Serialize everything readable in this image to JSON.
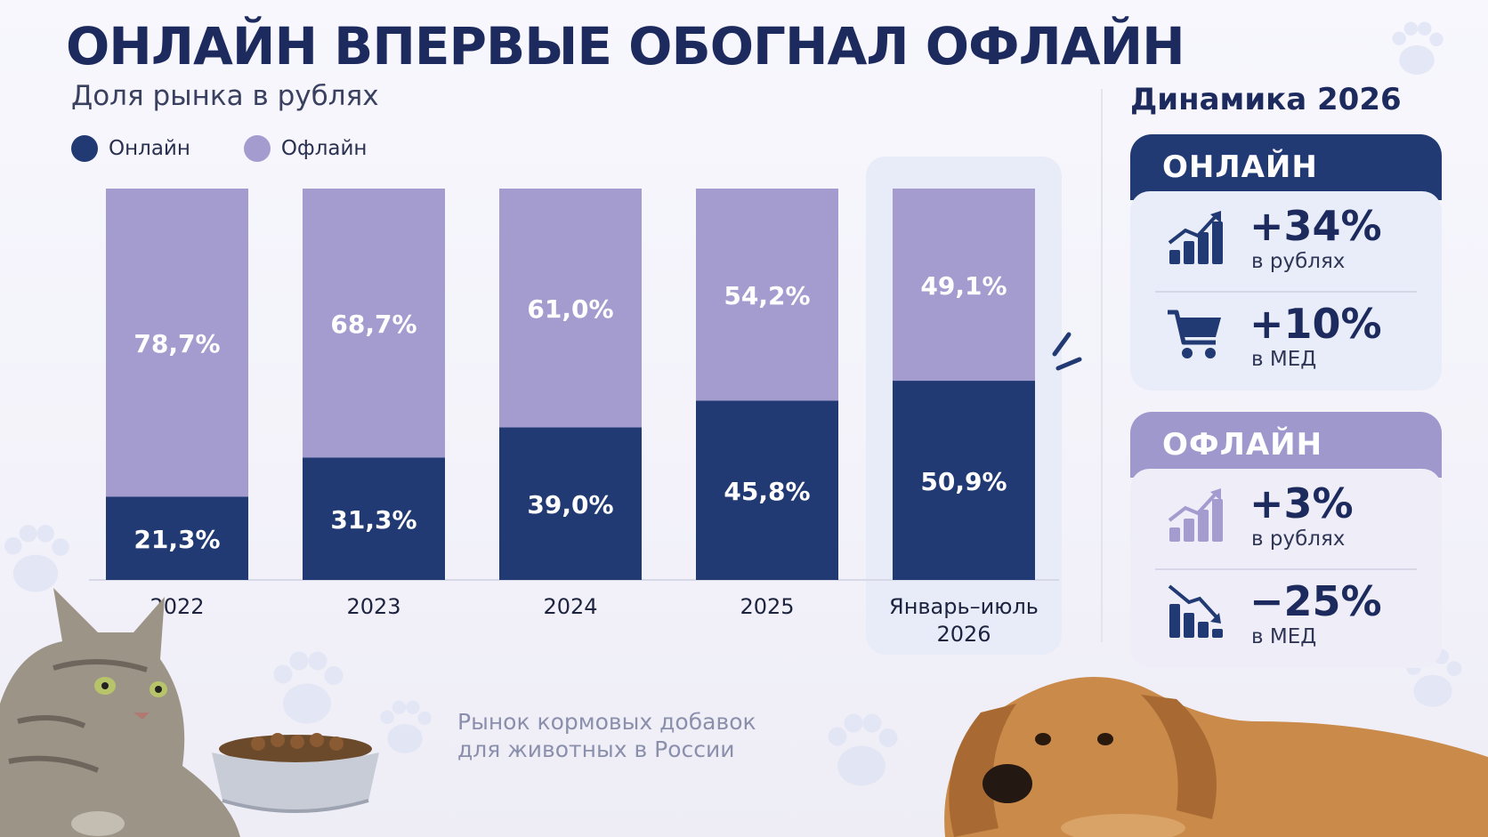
{
  "title": "ОНЛАЙН ВПЕРВЫЕ ОБОГНАЛ ОФЛАЙН",
  "subtitle": "Доля рынка в рублях",
  "footnote": [
    "Рынок кормовых добавок",
    "для животных в России"
  ],
  "colors": {
    "online": "#223a73",
    "offline": "#a49ccf",
    "title": "#1c2a5e",
    "highlight": "#e8ecf8"
  },
  "chart_data": {
    "type": "bar",
    "stacked": true,
    "categories": [
      [
        "2022"
      ],
      [
        "2023"
      ],
      [
        "2024"
      ],
      [
        "2025"
      ],
      [
        "Январь–июль",
        "2026"
      ]
    ],
    "series": [
      {
        "name": "Онлайн",
        "values": [
          21.3,
          31.3,
          39.0,
          45.8,
          50.9
        ],
        "labels": [
          "21,3%",
          "31,3%",
          "39,0%",
          "45,8%",
          "50,9%"
        ],
        "color": "#223a73"
      },
      {
        "name": "Офлайн",
        "values": [
          78.7,
          68.7,
          61.0,
          54.2,
          49.1
        ],
        "labels": [
          "78,7%",
          "68,7%",
          "61,0%",
          "54,2%",
          "49,1%"
        ],
        "color": "#a49ccf"
      }
    ],
    "ylim": [
      0,
      100
    ],
    "highlight_category": 4,
    "legend_position": "top-left",
    "grid": false
  },
  "panel": {
    "title": "Динамика 2026",
    "cards": [
      {
        "header": "ОНЛАЙН",
        "header_color": "#223a73",
        "body_color": "#e9edf9",
        "metrics": [
          {
            "icon": "growth-chart-icon",
            "value": "+34%",
            "note": "в рублях"
          },
          {
            "icon": "shopping-cart-icon",
            "value": "+10%",
            "note": "в МЕД"
          }
        ]
      },
      {
        "header": "ОФЛАЙН",
        "header_color": "#9f98cc",
        "body_color": "#efedf8",
        "metrics": [
          {
            "icon": "growth-chart-icon",
            "value": "+3%",
            "note": "в рублях"
          },
          {
            "icon": "decline-chart-icon",
            "value": "−25%",
            "note": "в МЕД"
          }
        ]
      }
    ]
  }
}
